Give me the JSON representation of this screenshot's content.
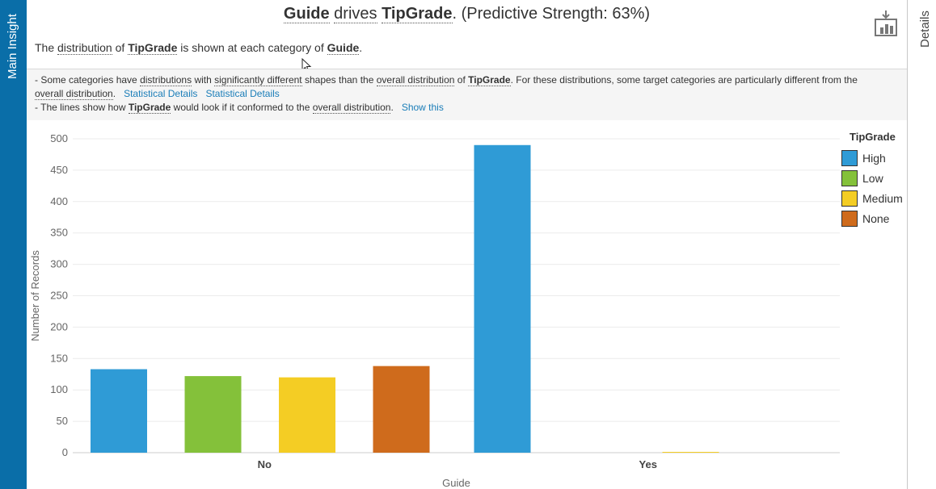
{
  "left_tab": {
    "label": "Main Insight"
  },
  "right_tab": {
    "label": "Details"
  },
  "header": {
    "title_field": "Guide",
    "title_verb": "drives",
    "title_target": "TipGrade",
    "title_suffix": ". (Predictive Strength: 63%)",
    "subtitle_1": "The ",
    "subtitle_distribution": "distribution",
    "subtitle_2": " of ",
    "subtitle_target": "TipGrade",
    "subtitle_3": " is shown at each category of ",
    "subtitle_field": "Guide",
    "subtitle_4": "."
  },
  "notes": {
    "line1_a": "- Some categories have ",
    "line1_distributions": "distributions",
    "line1_b": " with ",
    "line1_sig": "significantly different",
    "line1_c": " shapes than the ",
    "line1_overall": "overall distribution",
    "line1_d": " of ",
    "line1_target": "TipGrade",
    "line1_e": ". For these distributions, some target categories are particularly different from the",
    "line2_overall": "overall distribution",
    "line2_a": ".",
    "link1": "Statistical Details",
    "link2": "Statistical Details",
    "line3_a": "- The lines show how ",
    "line3_target": "TipGrade",
    "line3_b": " would look if it conformed to the ",
    "line3_overall": "overall distribution",
    "line3_c": ".",
    "link3": "Show this"
  },
  "icons": {
    "export": "export-icon"
  },
  "chart_data": {
    "type": "bar",
    "categories": [
      "No",
      "Yes"
    ],
    "series": [
      {
        "name": "High",
        "color": "#2f9bd6",
        "values": [
          133,
          490
        ]
      },
      {
        "name": "Low",
        "color": "#84c13a",
        "values": [
          122,
          0
        ]
      },
      {
        "name": "Medium",
        "color": "#f4cd24",
        "values": [
          120,
          1
        ]
      },
      {
        "name": "None",
        "color": "#cf6b1c",
        "values": [
          138,
          0
        ]
      }
    ],
    "xlabel": "Guide",
    "ylabel": "Number of Records",
    "ylim": [
      0,
      500
    ],
    "yticks": [
      0,
      50,
      100,
      150,
      200,
      250,
      300,
      350,
      400,
      450,
      500
    ],
    "grid": true,
    "legend": {
      "title": "TipGrade",
      "position": "right"
    }
  }
}
